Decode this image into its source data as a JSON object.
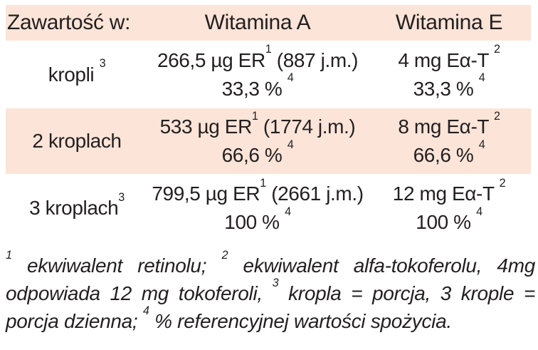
{
  "colors": {
    "row_highlight": "#fce4d8",
    "text": "#231f20",
    "background": "#ffffff"
  },
  "table": {
    "header": {
      "col1": "Zawartość w:",
      "col2": "Witamina A",
      "col3": "Witamina E"
    },
    "rows": [
      {
        "label": {
          "text": "kropli ",
          "sup": "3"
        },
        "vit_a": {
          "l1_pre": "266,5 µg ER",
          "l1_sup": "1",
          "l1_post": " (887 j.m.)",
          "l2_pre": "33,3 % ",
          "l2_sup": "4"
        },
        "vit_e": {
          "l1_pre": "4 mg Eα-T ",
          "l1_sup": "2",
          "l2_pre": "33,3 % ",
          "l2_sup": "4"
        }
      },
      {
        "label": {
          "text": "2 kroplach",
          "sup": ""
        },
        "vit_a": {
          "l1_pre": "533 µg ER",
          "l1_sup": "1",
          "l1_post": " (1774 j.m.)",
          "l2_pre": "66,6 % ",
          "l2_sup": "4"
        },
        "vit_e": {
          "l1_pre": "8 mg Eα-T ",
          "l1_sup": "2",
          "l2_pre": "66,6 % ",
          "l2_sup": "4"
        }
      },
      {
        "label": {
          "text": "3 kroplach",
          "sup": "3"
        },
        "vit_a": {
          "l1_pre": "799,5 µg ER",
          "l1_sup": "1",
          "l1_post": " (2661 j.m.)",
          "l2_pre": "100 % ",
          "l2_sup": "4"
        },
        "vit_e": {
          "l1_pre": "12 mg Eα-T ",
          "l1_sup": "2",
          "l2_pre": "100 % ",
          "l2_sup": "4"
        }
      }
    ]
  },
  "footnote": {
    "parts": [
      {
        "sup": "1",
        "text": " ekwiwalent retinolu; "
      },
      {
        "sup": "2",
        "text": " ekwiwalent alfa-tokoferolu, 4mg odpowiada 12 mg tokoferoli, "
      },
      {
        "sup": "3",
        "text": " kropla = porcja, 3 krople = porcja dzienna; "
      },
      {
        "sup": "4",
        "text": " % referencyjnej wartości spożycia."
      }
    ]
  }
}
